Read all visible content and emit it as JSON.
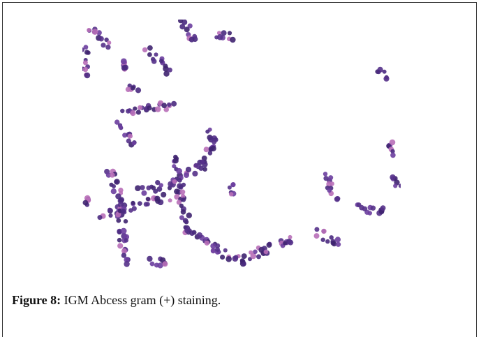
{
  "figure": {
    "label": "Figure 8:",
    "caption": "IGM Abcess gram (+) staining."
  }
}
